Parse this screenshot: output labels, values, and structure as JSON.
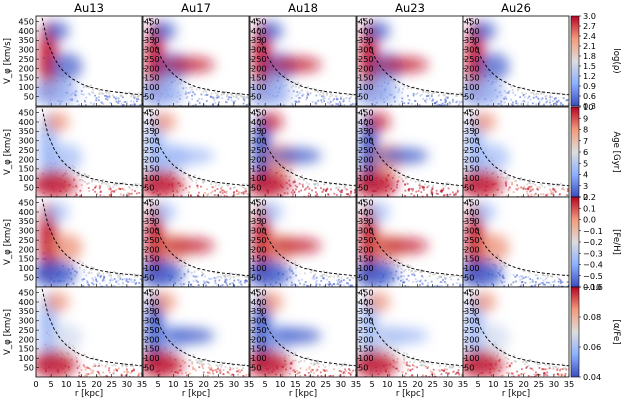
{
  "chart_data": {
    "type": "heatmap",
    "columns": [
      "Au13",
      "Au17",
      "Au18",
      "Au23",
      "Au26"
    ],
    "rows": [
      {
        "quantity": "density",
        "colorbar_label": "log(ρ)",
        "range": [
          0.3,
          3.0
        ],
        "ticks": [
          "0.3",
          "0.6",
          "0.9",
          "1.2",
          "1.5",
          "1.8",
          "2.1",
          "2.4",
          "2.7",
          "3.0"
        ]
      },
      {
        "quantity": "age",
        "colorbar_label": "Age [Gyr]",
        "range": [
          2,
          10
        ],
        "ticks": [
          "2",
          "3",
          "4",
          "5",
          "6",
          "7",
          "8",
          "9",
          "10"
        ]
      },
      {
        "quantity": "metallicity",
        "colorbar_label": "[Fe/H]",
        "range": [
          -0.6,
          0.2
        ],
        "ticks": [
          "−0.6",
          "−0.5",
          "−0.4",
          "−0.3",
          "−0.2",
          "−0.1",
          "0.0",
          "0.1",
          "0.2"
        ]
      },
      {
        "quantity": "alpha",
        "colorbar_label": "[α/Fe]",
        "range": [
          0.04,
          0.1
        ],
        "ticks": [
          "0.04",
          "0.06",
          "0.08",
          "0.10"
        ]
      }
    ],
    "xlabel": "r [kpc]",
    "ylabel": "V_φ [km/s]",
    "xlim": [
      0,
      35
    ],
    "ylim": [
      0,
      480
    ],
    "xticks": [
      "0",
      "5",
      "10",
      "15",
      "20",
      "25",
      "30",
      "35"
    ],
    "yticks": [
      "50",
      "100",
      "150",
      "200",
      "250",
      "300",
      "350",
      "400",
      "450"
    ],
    "escape_curve": {
      "style": "dashed",
      "color": "#000000",
      "r": [
        2,
        4,
        6,
        8,
        10,
        12,
        15,
        18,
        22,
        26,
        30,
        35
      ],
      "v": [
        470,
        330,
        255,
        205,
        170,
        145,
        118,
        100,
        85,
        75,
        68,
        60
      ]
    },
    "colormap": {
      "low": "#3b4cc0",
      "mid": "#dddddd",
      "high": "#b40426"
    }
  }
}
